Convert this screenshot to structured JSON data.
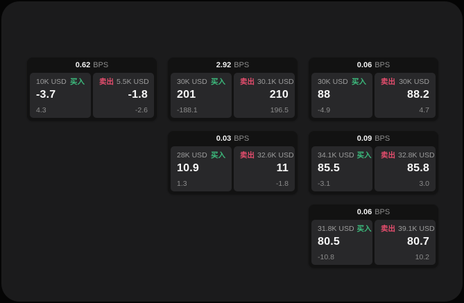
{
  "labels": {
    "bps": "BPS",
    "buy": "买入",
    "sell": "卖出"
  },
  "colors": {
    "canvas": "#1b1b1c",
    "card": "#121212",
    "panel": "#28282a",
    "buy_accent": "#3cba7c",
    "sell_accent": "#e44d6d"
  },
  "cards": [
    {
      "bps": "0.62",
      "buy": {
        "size": "10K USD",
        "value": "-3.7",
        "sub": "4.3"
      },
      "sell": {
        "size": "5.5K USD",
        "value": "-1.8",
        "sub": "-2.6"
      }
    },
    {
      "bps": "2.92",
      "buy": {
        "size": "30K USD",
        "value": "201",
        "sub": "-188.1"
      },
      "sell": {
        "size": "30.1K USD",
        "value": "210",
        "sub": "196.5"
      }
    },
    {
      "bps": "0.06",
      "buy": {
        "size": "30K USD",
        "value": "88",
        "sub": "-4.9"
      },
      "sell": {
        "size": "30K USD",
        "value": "88.2",
        "sub": "4.7"
      }
    },
    {
      "bps": "0.03",
      "buy": {
        "size": "28K USD",
        "value": "10.9",
        "sub": "1.3"
      },
      "sell": {
        "size": "32.6K USD",
        "value": "11",
        "sub": "-1.8"
      }
    },
    {
      "bps": "0.09",
      "buy": {
        "size": "34.1K USD",
        "value": "85.5",
        "sub": "-3.1"
      },
      "sell": {
        "size": "32.8K USD",
        "value": "85.8",
        "sub": "3.0"
      }
    },
    {
      "bps": "0.06",
      "buy": {
        "size": "31.8K USD",
        "value": "80.5",
        "sub": "-10.8"
      },
      "sell": {
        "size": "39.1K USD",
        "value": "80.7",
        "sub": "10.2"
      }
    }
  ]
}
